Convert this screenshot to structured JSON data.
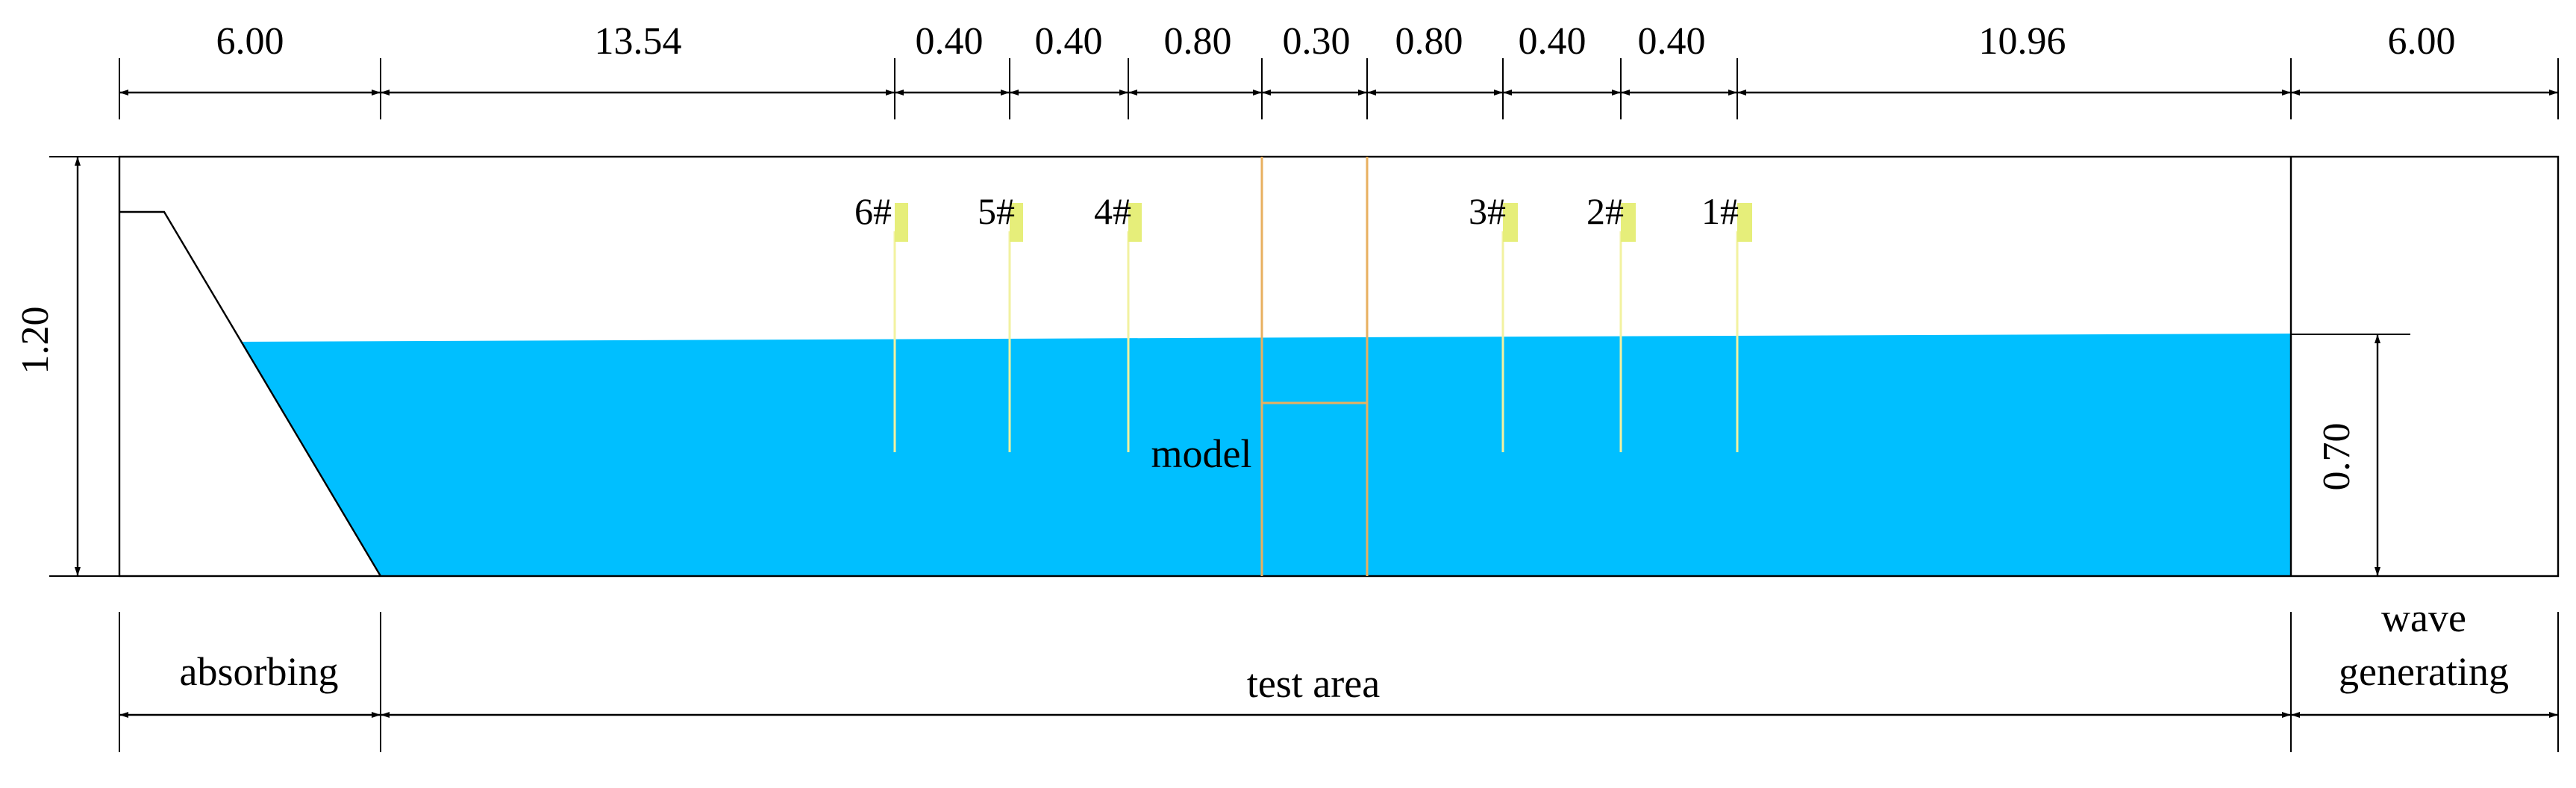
{
  "top_dimensions": [
    "6.00",
    "13.54",
    "0.40",
    "0.40",
    "0.80",
    "0.30",
    "0.80",
    "0.40",
    "0.40",
    "10.96",
    "6.00"
  ],
  "height_label": "1.20",
  "depth_label": "0.70",
  "gauges": [
    "6#",
    "5#",
    "4#",
    "3#",
    "2#",
    "1#"
  ],
  "model_label": "model",
  "zones": {
    "absorbing": "absorbing",
    "test_area": "test area",
    "wave_line1": "wave",
    "wave_line2": "generating"
  },
  "colors": {
    "water": "#00BFFF",
    "gauge_marker": "#E6EE7A",
    "gauge_line": "#F2F2A0",
    "model_outline": "#E8B060"
  }
}
